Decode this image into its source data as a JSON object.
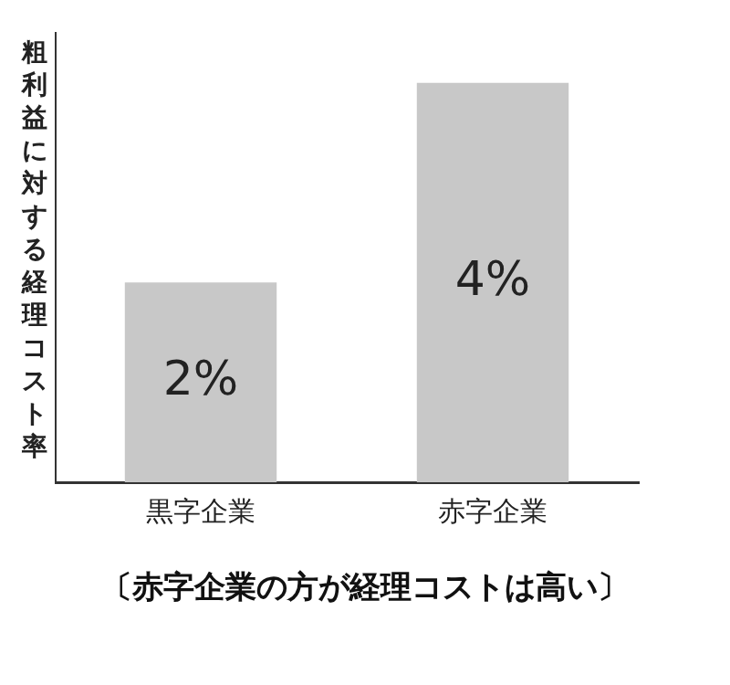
{
  "chart_data": {
    "type": "bar",
    "ylabel": "粗利益に対する経理コスト率",
    "categories": [
      "黒字企業",
      "赤字企業"
    ],
    "values": [
      2,
      4
    ],
    "color": "#c8c8c8",
    "value_labels": [
      "2%",
      "4%"
    ],
    "grid": false,
    "legend": false,
    "tick_labels": "x",
    "annotations": [
      "〔赤字企業の方が経理コストは高い〕"
    ]
  }
}
